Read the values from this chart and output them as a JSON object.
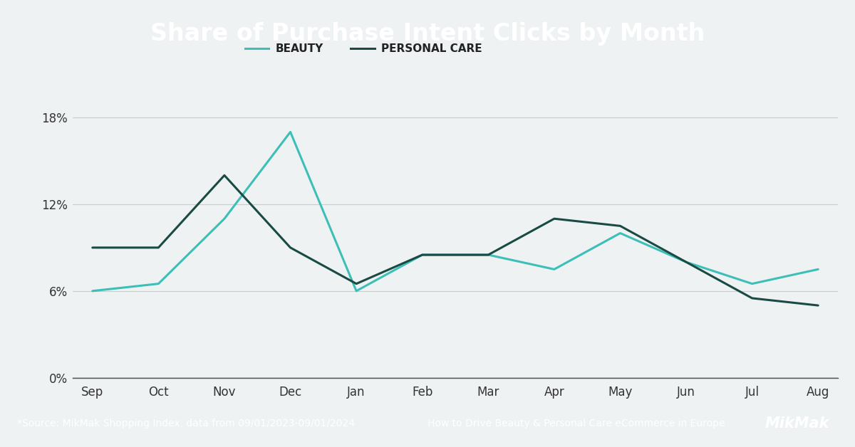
{
  "title": "Share of Purchase Intent Clicks by Month",
  "months": [
    "Sep",
    "Oct",
    "Nov",
    "Dec",
    "Jan",
    "Feb",
    "Mar",
    "Apr",
    "May",
    "Jun",
    "Jul",
    "Aug"
  ],
  "beauty": [
    0.06,
    0.065,
    0.11,
    0.17,
    0.06,
    0.085,
    0.085,
    0.075,
    0.1,
    0.08,
    0.065,
    0.075
  ],
  "personal_care": [
    0.09,
    0.09,
    0.14,
    0.09,
    0.065,
    0.085,
    0.085,
    0.11,
    0.105,
    0.08,
    0.055,
    0.05
  ],
  "beauty_label": "BEAUTY",
  "personal_care_label": "PERSONAL CARE",
  "beauty_color": "#3DBFB8",
  "personal_care_color": "#1A4A44",
  "header_bg": "#00A89D",
  "header_text_color": "#FFFFFF",
  "footer_bg": "#00A89D",
  "footer_text_color": "#FFFFFF",
  "chart_bg": "#EEF2F3",
  "yticks": [
    0.0,
    0.06,
    0.12,
    0.18
  ],
  "ytick_labels": [
    "0%",
    "6%",
    "12%",
    "18%"
  ],
  "ylim": [
    0.0,
    0.205
  ],
  "source_text": "*Source: MikMak Shopping Index, data from 09/01/2023-09/01/2024",
  "footer_right_text": "How to Drive Beauty & Personal Care eCommerce in Europe",
  "mikmak_text": "MikMak",
  "title_fontsize": 24,
  "axis_label_fontsize": 12,
  "legend_fontsize": 11,
  "footer_fontsize": 10
}
